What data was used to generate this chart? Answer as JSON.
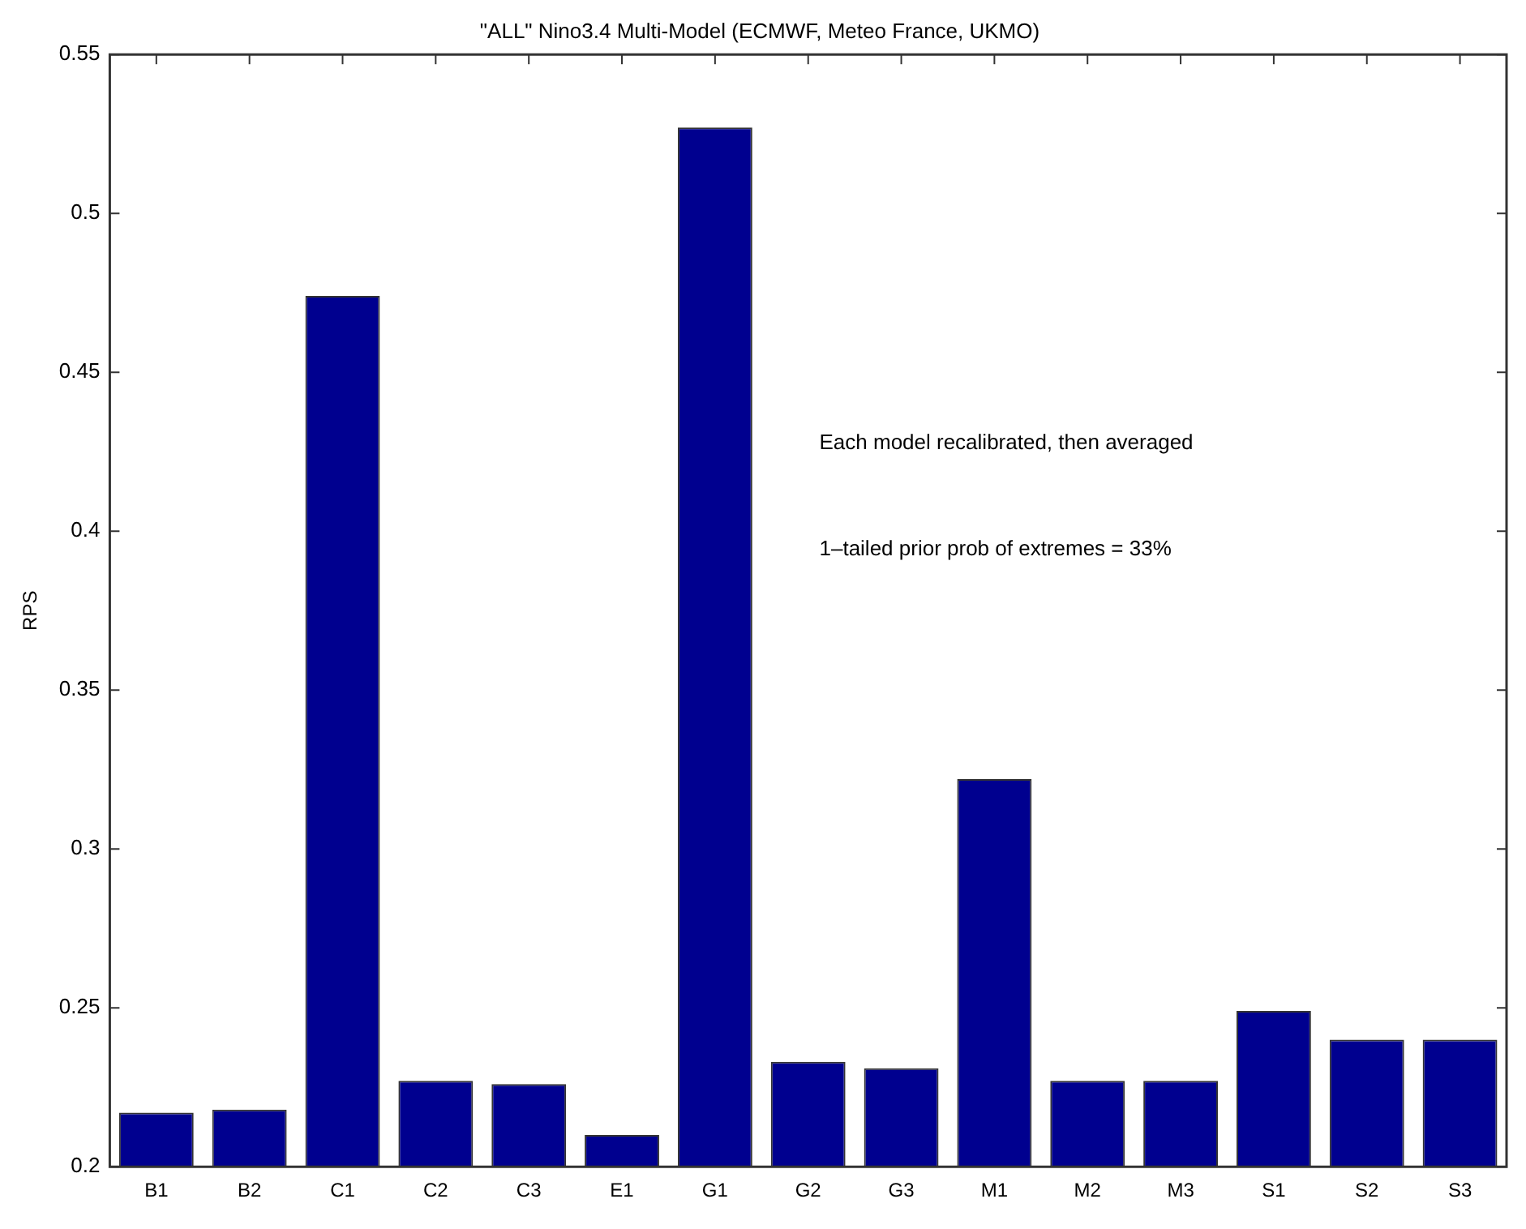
{
  "chart_data": {
    "type": "bar",
    "title": "\"ALL\" Nino3.4 Multi-Model (ECMWF, Meteo France, UKMO)",
    "ylabel": "RPS",
    "categories": [
      "B1",
      "B2",
      "C1",
      "C2",
      "C3",
      "E1",
      "G1",
      "G2",
      "G3",
      "M1",
      "M2",
      "M3",
      "S1",
      "S2",
      "S3"
    ],
    "values": [
      0.217,
      0.218,
      0.474,
      0.227,
      0.226,
      0.21,
      0.527,
      0.233,
      0.231,
      0.322,
      0.227,
      0.227,
      0.249,
      0.24,
      0.24
    ],
    "color": "#00008f",
    "ylim": [
      0.2,
      0.55
    ],
    "yticks": [
      0.2,
      0.25,
      0.3,
      0.35,
      0.4,
      0.45,
      0.5,
      0.55
    ],
    "grid": false,
    "legend": false,
    "annotations": [
      "Each model recalibrated, then averaged",
      "1–tailed prior prob of extremes = 33%"
    ]
  }
}
